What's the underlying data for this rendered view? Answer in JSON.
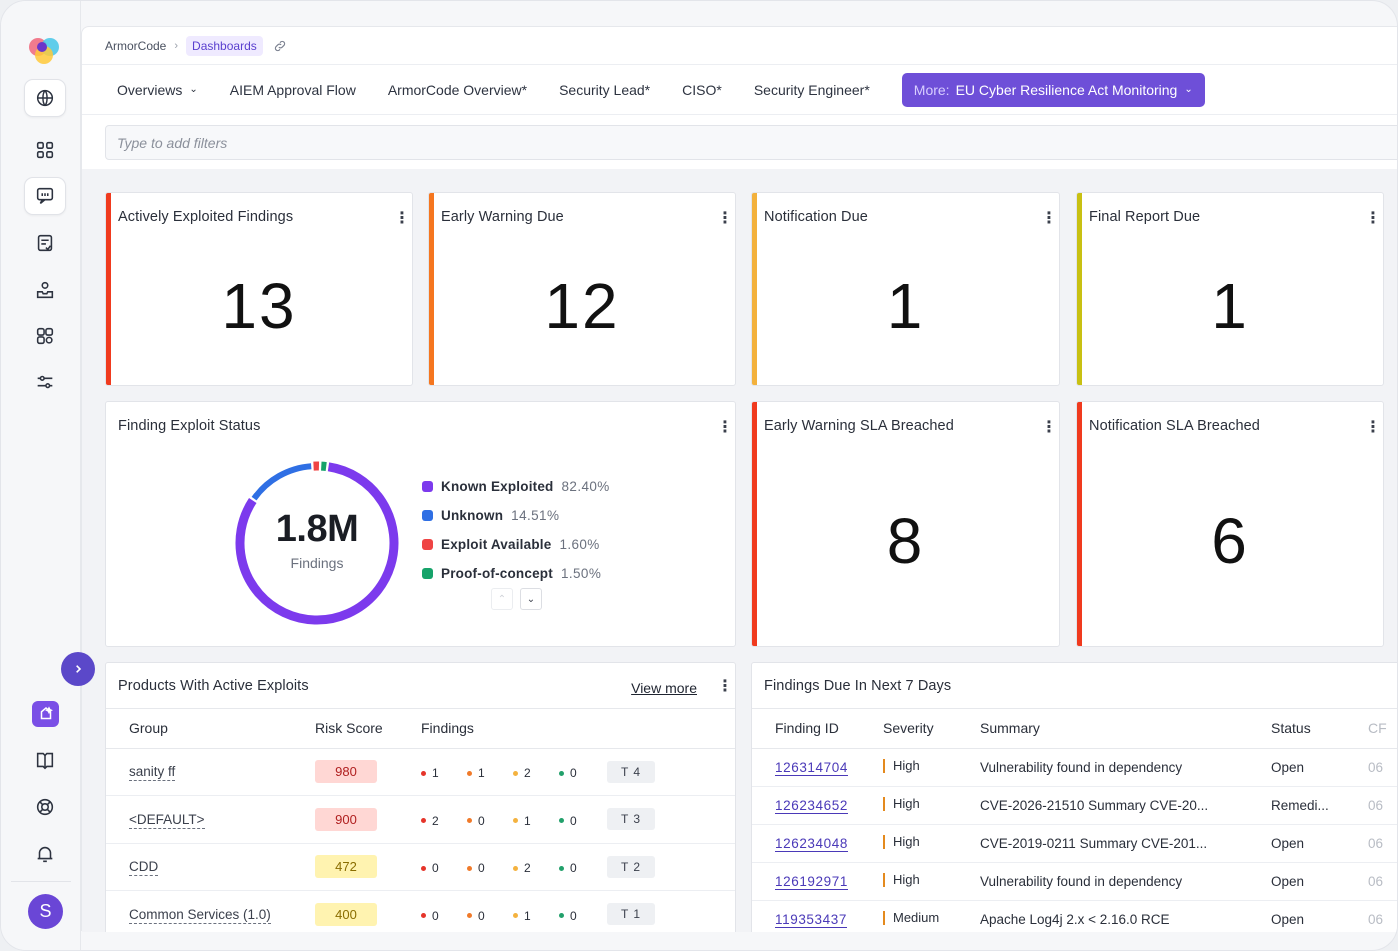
{
  "breadcrumb": {
    "root": "ArmorCode",
    "current": "Dashboards"
  },
  "tabs": [
    {
      "label": "Overviews",
      "has_dropdown": true
    },
    {
      "label": "AIEM Approval Flow"
    },
    {
      "label": "ArmorCode Overview*"
    },
    {
      "label": "Security Lead*"
    },
    {
      "label": "CISO*"
    },
    {
      "label": "Security Engineer*"
    }
  ],
  "more_tab": {
    "prefix": "More:",
    "label": "EU Cyber Resilience Act Monitoring"
  },
  "filter": {
    "placeholder": "Type to add filters"
  },
  "kpis": [
    {
      "title": "Actively Exploited Findings",
      "value": "13",
      "accent": "#f03a1e"
    },
    {
      "title": "Early Warning Due",
      "value": "12",
      "accent": "#f5761f"
    },
    {
      "title": "Notification Due",
      "value": "1",
      "accent": "#f3b13c"
    },
    {
      "title": "Final Report Due",
      "value": "1",
      "accent": "#c8c012"
    },
    {
      "title": "Early Warning SLA Breached",
      "value": "8",
      "accent": "#f03a1e"
    },
    {
      "title": "Notification SLA Breached",
      "value": "6",
      "accent": "#f03a1e"
    }
  ],
  "exploit_status": {
    "title": "Finding Exploit Status",
    "total": "1.8M",
    "total_label": "Findings",
    "chart_data": {
      "type": "pie",
      "categories": [
        "Known Exploited",
        "Unknown",
        "Exploit Available",
        "Proof-of-concept"
      ],
      "values": [
        82.4,
        14.51,
        1.6,
        1.5
      ],
      "labels": [
        "82.40%",
        "14.51%",
        "1.60%",
        "1.50%"
      ],
      "colors": [
        "#7c3aed",
        "#2f6fe4",
        "#ef4444",
        "#16a36a"
      ]
    }
  },
  "products": {
    "title": "Products With Active Exploits",
    "view_more": "View more",
    "columns": [
      "Group",
      "Risk Score",
      "Findings"
    ],
    "rows": [
      {
        "group": "sanity ff",
        "score": "980",
        "level": "red",
        "counts": [
          "1",
          "1",
          "2",
          "0"
        ],
        "total": "T 4"
      },
      {
        "group": "<DEFAULT>",
        "score": "900",
        "level": "red",
        "counts": [
          "2",
          "0",
          "1",
          "0"
        ],
        "total": "T 3"
      },
      {
        "group": "CDD",
        "score": "472",
        "level": "yellow",
        "counts": [
          "0",
          "0",
          "2",
          "0"
        ],
        "total": "T 2"
      },
      {
        "group": "Common Services (1.0)",
        "score": "400",
        "level": "yellow",
        "counts": [
          "0",
          "0",
          "1",
          "0"
        ],
        "total": "T 1"
      }
    ],
    "count_colors": [
      "#e5342a",
      "#f07a2a",
      "#f4b23f",
      "#22a06b"
    ]
  },
  "findings_due": {
    "title": "Findings Due In Next 7 Days",
    "columns": [
      "Finding ID",
      "Severity",
      "Summary",
      "Status",
      "CF"
    ],
    "rows": [
      {
        "id": "126314704",
        "severity": "High",
        "summary": "Vulnerability found in dependency",
        "status": "Open",
        "extra": "06"
      },
      {
        "id": "126234652",
        "severity": "High",
        "summary": "CVE-2026-21510 Summary CVE-20...",
        "status": "Remedi...",
        "extra": "06"
      },
      {
        "id": "126234048",
        "severity": "High",
        "summary": "CVE-2019-0211 Summary CVE-201...",
        "status": "Open",
        "extra": "06"
      },
      {
        "id": "126192971",
        "severity": "High",
        "summary": "Vulnerability found in dependency",
        "status": "Open",
        "extra": "06"
      },
      {
        "id": "119353437",
        "severity": "Medium",
        "summary": "Apache Log4j 2.x < 2.16.0 RCE",
        "status": "Open",
        "extra": "06"
      }
    ]
  },
  "user": {
    "initial": "S"
  },
  "icons": [
    "logo-icon",
    "globe-icon",
    "grid-icon",
    "chat-icon",
    "checklist-icon",
    "inbox-person-icon",
    "scan-icon",
    "sliders-icon",
    "chevron-right-icon",
    "sparkle-icon",
    "book-icon",
    "lifebuoy-icon",
    "bell-icon",
    "link-icon",
    "chevron-down-icon",
    "kebab-icon"
  ]
}
